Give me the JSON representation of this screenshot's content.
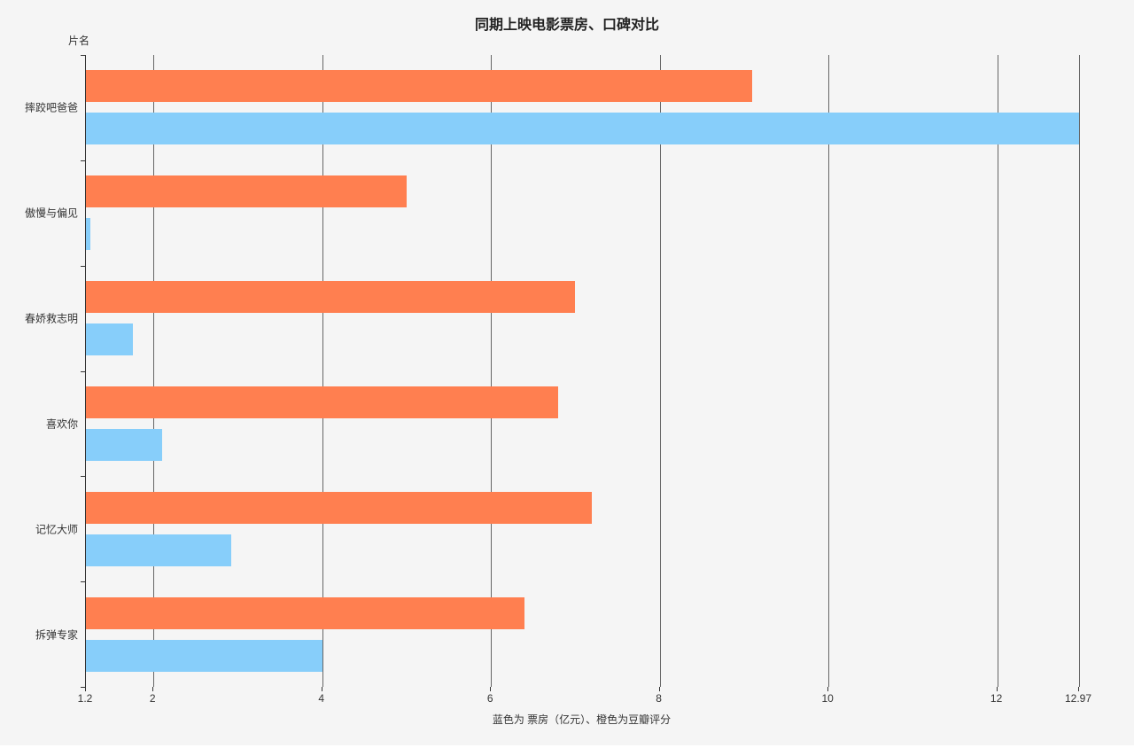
{
  "page": {
    "background": "#FFFFFF",
    "chart_background": "#F5F5F5"
  },
  "chart_data": {
    "type": "bar",
    "orientation": "horizontal",
    "title": "同期上映电影票房、口碑对比",
    "xlabel": "蓝色为 票房（亿元）、橙色为豆瓣评分",
    "ylabel": "片名",
    "categories": [
      "摔跤吧爸爸",
      "傲慢与偏见",
      "春娇救志明",
      "喜欢你",
      "记忆大师",
      "拆弹专家"
    ],
    "series": [
      {
        "name": "豆瓣评分",
        "color": "#FF7F50",
        "position": "top",
        "values": [
          9.1,
          5.0,
          7.0,
          6.8,
          7.2,
          6.4
        ]
      },
      {
        "name": "票房（亿元）",
        "color": "#87CEFA",
        "position": "bottom",
        "values": [
          12.97,
          1.25,
          1.76,
          2.1,
          2.92,
          4.0
        ]
      }
    ],
    "x_ticks": [
      1.2,
      2,
      4,
      6,
      8,
      10,
      12,
      12.97
    ],
    "x_tick_labels": [
      "1.2",
      "2",
      "4",
      "6",
      "8",
      "10",
      "12",
      "12.97"
    ],
    "xlim": [
      1.2,
      12.97
    ],
    "grid": true,
    "legend_position": "none",
    "axis_color": "#333333",
    "grid_line_color": "#666666"
  }
}
